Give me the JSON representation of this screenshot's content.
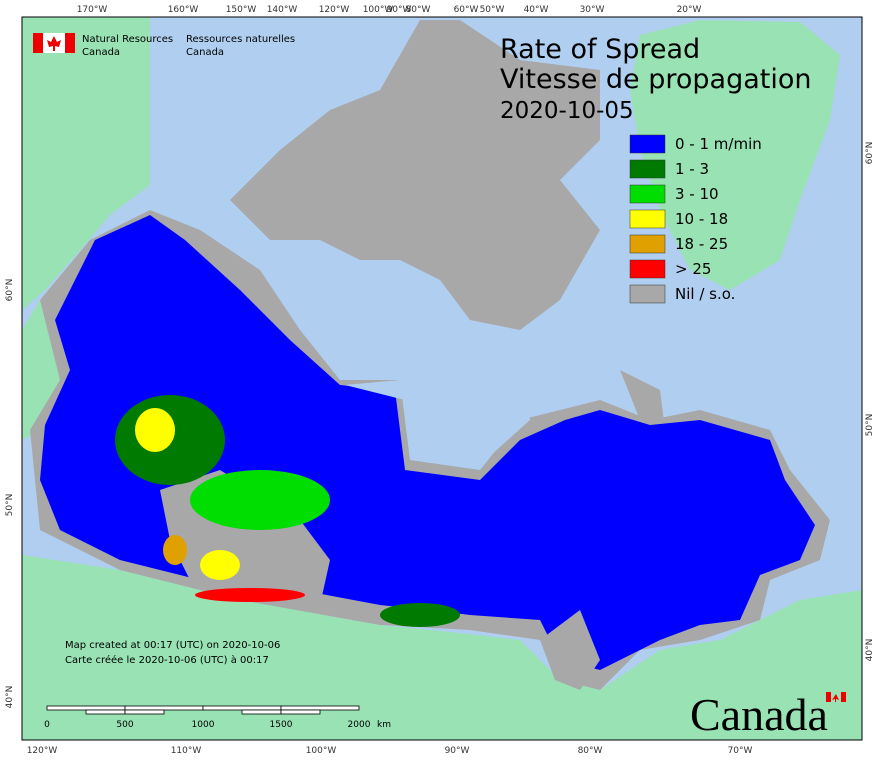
{
  "header": {
    "agency_en": [
      "Natural Resources",
      "Canada"
    ],
    "agency_fr": [
      "Ressources naturelles",
      "Canada"
    ]
  },
  "title": {
    "line1": "Rate of Spread",
    "line2": "Vitesse de propagation",
    "date": "2020-10-05"
  },
  "legend": [
    {
      "label": "0 - 1 m/min",
      "color": "#0000ff"
    },
    {
      "label": "1 - 3",
      "color": "#007a00"
    },
    {
      "label": "3 - 10",
      "color": "#00dd00"
    },
    {
      "label": "10 - 18",
      "color": "#ffff00"
    },
    {
      "label": "18 - 25",
      "color": "#e0a000"
    },
    {
      "label": "> 25",
      "color": "#ff0000"
    },
    {
      "label": "Nil / s.o.",
      "color": "#a8a8a8"
    }
  ],
  "graticule": {
    "top": [
      "170°W",
      "160°W",
      "150°W",
      "140°W",
      "120°W",
      "100°W",
      "90°W",
      "80°W",
      "60°W",
      "50°W",
      "40°W",
      "30°W",
      "20°W"
    ],
    "bottom": [
      "120°W",
      "110°W",
      "100°W",
      "90°W",
      "80°W",
      "70°W"
    ],
    "left": [
      "60°N",
      "50°N",
      "40°N"
    ],
    "right": [
      "60°N",
      "50°N",
      "40°N"
    ]
  },
  "footnote": [
    "Map created at 00:17 (UTC) on 2020-10-06",
    "Carte créée le 2020-10-06 (UTC) à 00:17"
  ],
  "scale_bar": {
    "ticks": [
      "0",
      "500",
      "1000",
      "1500",
      "2000"
    ],
    "unit": "km"
  },
  "wordmark": "Canada"
}
